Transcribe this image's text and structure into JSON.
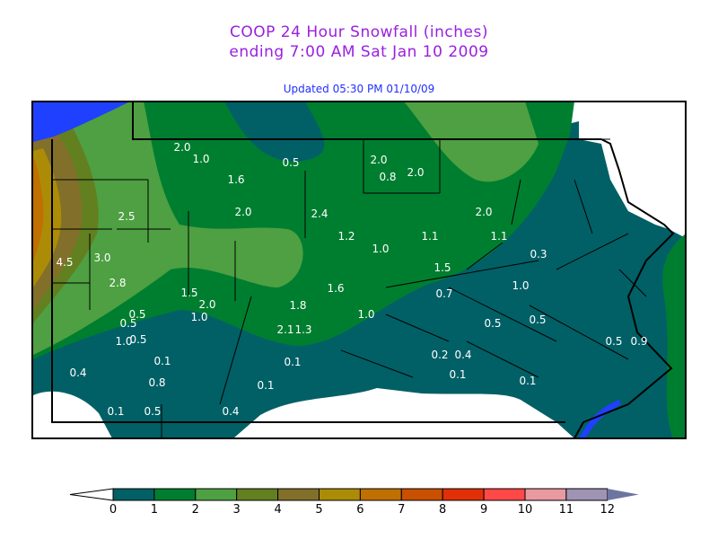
{
  "title_line1": "COOP 24 Hour Snowfall (inches)",
  "title_line2": "ending 7:00 AM Sat Jan 10 2009",
  "updated": "Updated 05:30 PM 01/10/09",
  "station_values": [
    "2.0",
    "1.0",
    "0.5",
    "2.0",
    "0.8",
    "2.0",
    "1.6",
    "2.0",
    "2.4",
    "2.0",
    "2.5",
    "1.2",
    "1.0",
    "1.1",
    "1.1",
    "0.3",
    "4.5",
    "3.0",
    "2.8",
    "1.5",
    "1.6",
    "0.7",
    "1.0",
    "1.5",
    "2.0",
    "1.8",
    "0.5",
    "1.0",
    "1.0",
    "0.5",
    "2.1",
    "1.3",
    "0.5",
    "0.5",
    "1.0",
    "0.5",
    "0.5",
    "0.9",
    "0.1",
    "0.1",
    "0.2",
    "0.4",
    "0.4",
    "0.8",
    "0.1",
    "0.1",
    "0.1",
    "0.1",
    "0.5",
    "0.4"
  ],
  "legend": {
    "ticks": [
      "0",
      "1",
      "2",
      "3",
      "4",
      "5",
      "6",
      "7",
      "8",
      "9",
      "10",
      "11",
      "12"
    ],
    "colors": [
      "#006066",
      "#007e30",
      "#4ea042",
      "#628020",
      "#82702a",
      "#ac8c06",
      "#c07000",
      "#c85000",
      "#e03008",
      "#ff4848",
      "#e89aa0",
      "#a094b4"
    ],
    "under_color": "#ffffff",
    "over_color": "#6c74a0"
  },
  "water_color": "#2040ff"
}
